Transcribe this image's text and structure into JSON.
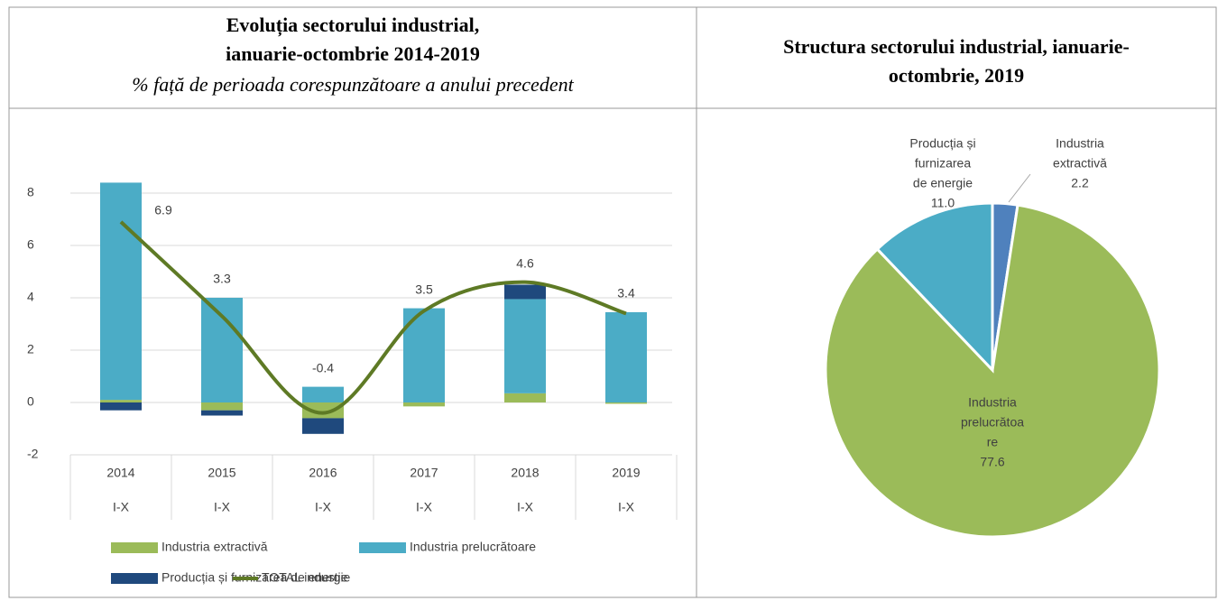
{
  "chart_data": [
    {
      "type": "stacked-bar-line",
      "title": [
        "Evoluția sectorului industrial,",
        "ianuarie-octombrie 2014-2019"
      ],
      "subtitle": "% față de perioada corespunzătoare a anului precedent",
      "categories": [
        "2014",
        "2015",
        "2016",
        "2017",
        "2018",
        "2019"
      ],
      "category_sublabels": [
        "I-X",
        "I-X",
        "I-X",
        "I-X",
        "I-X",
        "I-X"
      ],
      "series": [
        {
          "name": "Industria extractivă",
          "color": "#9bbb59",
          "kind": "bar",
          "values": [
            0.1,
            -0.3,
            -0.6,
            -0.15,
            0.35,
            -0.05
          ]
        },
        {
          "name": "Industria prelucrătoare",
          "color": "#4bacc6",
          "kind": "bar",
          "values": [
            8.3,
            4.0,
            0.6,
            3.6,
            3.6,
            3.45
          ]
        },
        {
          "name": "Producția și furnizarea de energie",
          "color": "#1f497d",
          "kind": "bar",
          "values": [
            -0.3,
            -0.2,
            -0.6,
            0,
            0.55,
            0
          ]
        },
        {
          "name": "TOTAL industie",
          "color": "#5e7a25",
          "kind": "line",
          "values": [
            6.9,
            3.3,
            -0.4,
            3.5,
            4.6,
            3.4
          ]
        }
      ],
      "ylim": [
        -2,
        9
      ],
      "yticks": [
        -2,
        0,
        2,
        4,
        6,
        8
      ],
      "grid": true
    },
    {
      "type": "pie",
      "title": [
        "Structura sectorului industrial, ianuarie-",
        "octombrie, 2019"
      ],
      "categories": [
        [
          "Industria",
          "extractivă"
        ],
        [
          "Industria",
          "prelucrătoa",
          "re"
        ],
        [
          "Producția și",
          "furnizarea",
          "de energie"
        ]
      ],
      "values": [
        2.2,
        77.6,
        11.0
      ],
      "value_labels": [
        "2.2",
        "77.6",
        "11.0"
      ],
      "colors": [
        "#4f81bd",
        "#9bbb59",
        "#4bacc6"
      ]
    }
  ]
}
